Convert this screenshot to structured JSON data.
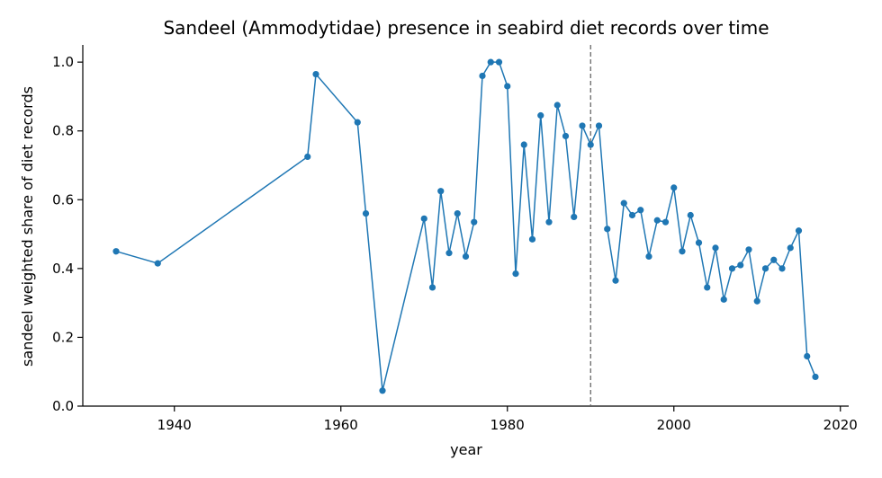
{
  "chart_data": {
    "type": "line",
    "title": "Sandeel (Ammodytidae) presence in seabird diet records over time",
    "xlabel": "year",
    "ylabel": "sandeel weighted share of diet records",
    "xlim": [
      1929,
      2021
    ],
    "ylim": [
      0.0,
      1.05
    ],
    "xticks": [
      1940,
      1960,
      1980,
      2000,
      2020
    ],
    "yticks": [
      0.0,
      0.2,
      0.4,
      0.6,
      0.8,
      1.0
    ],
    "grid": false,
    "reference_line": {
      "x": 1990,
      "style": "dashed",
      "color": "#666666"
    },
    "series": [
      {
        "color": "#1f77b4",
        "x": [
          1933,
          1938,
          1956,
          1957,
          1962,
          1963,
          1965,
          1970,
          1971,
          1972,
          1973,
          1974,
          1975,
          1976,
          1977,
          1978,
          1979,
          1980,
          1981,
          1982,
          1983,
          1984,
          1985,
          1986,
          1987,
          1988,
          1989,
          1990,
          1991,
          1992,
          1993,
          1994,
          1995,
          1996,
          1997,
          1998,
          1999,
          2000,
          2001,
          2002,
          2003,
          2004,
          2005,
          2006,
          2007,
          2008,
          2009,
          2010,
          2011,
          2012,
          2013,
          2014,
          2015,
          2016,
          2017
        ],
        "y": [
          0.45,
          0.415,
          0.725,
          0.965,
          0.825,
          0.56,
          0.045,
          0.545,
          0.345,
          0.625,
          0.445,
          0.56,
          0.435,
          0.535,
          0.96,
          1.0,
          1.0,
          0.93,
          0.385,
          0.76,
          0.485,
          0.845,
          0.535,
          0.875,
          0.785,
          0.55,
          0.815,
          0.76,
          0.815,
          0.515,
          0.365,
          0.59,
          0.555,
          0.57,
          0.435,
          0.54,
          0.535,
          0.635,
          0.45,
          0.555,
          0.475,
          0.345,
          0.46,
          0.31,
          0.4,
          0.41,
          0.455,
          0.305,
          0.4,
          0.425,
          0.4,
          0.46,
          0.51,
          0.145,
          0.085
        ]
      }
    ]
  }
}
